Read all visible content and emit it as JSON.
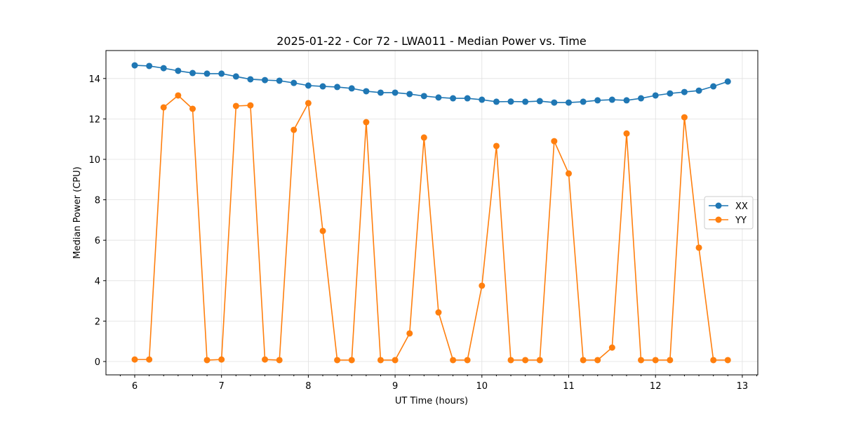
{
  "chart_data": {
    "type": "line",
    "title": "2025-01-22 - Cor 72 - LWA011 - Median Power vs. Time",
    "xlabel": "UT Time (hours)",
    "ylabel": "Median Power (CPU)",
    "xlim": [
      5.67,
      13.17
    ],
    "ylim": [
      -0.65,
      15.4
    ],
    "xticks": [
      6,
      7,
      8,
      9,
      10,
      11,
      12,
      13
    ],
    "yticks": [
      0,
      2,
      4,
      6,
      8,
      10,
      12,
      14
    ],
    "grid": true,
    "legend_position": "center-right",
    "x": [
      6.0,
      6.167,
      6.333,
      6.5,
      6.667,
      6.833,
      7.0,
      7.167,
      7.333,
      7.5,
      7.667,
      7.833,
      8.0,
      8.167,
      8.333,
      8.5,
      8.667,
      8.833,
      9.0,
      9.167,
      9.333,
      9.5,
      9.667,
      9.833,
      10.0,
      10.167,
      10.333,
      10.5,
      10.667,
      10.833,
      11.0,
      11.167,
      11.333,
      11.5,
      11.667,
      11.833,
      12.0,
      12.167,
      12.333,
      12.5,
      12.667,
      12.833
    ],
    "series": [
      {
        "name": "XX",
        "color": "#1f77b4",
        "values": [
          14.65,
          14.62,
          14.51,
          14.38,
          14.27,
          14.24,
          14.24,
          14.1,
          13.96,
          13.92,
          13.89,
          13.78,
          13.65,
          13.61,
          13.58,
          13.51,
          13.37,
          13.3,
          13.3,
          13.23,
          13.13,
          13.06,
          13.02,
          13.02,
          12.95,
          12.85,
          12.86,
          12.85,
          12.88,
          12.81,
          12.81,
          12.85,
          12.92,
          12.95,
          12.92,
          13.02,
          13.16,
          13.26,
          13.33,
          13.4,
          13.61,
          13.85
        ]
      },
      {
        "name": "YY",
        "color": "#ff7f0e",
        "values": [
          0.1,
          0.1,
          12.57,
          13.16,
          12.5,
          0.07,
          0.1,
          12.64,
          12.67,
          0.1,
          0.07,
          11.46,
          12.78,
          6.46,
          0.07,
          0.07,
          11.84,
          0.07,
          0.07,
          1.39,
          11.08,
          2.43,
          0.07,
          0.07,
          3.75,
          10.66,
          0.07,
          0.07,
          0.07,
          10.9,
          9.3,
          0.07,
          0.07,
          0.69,
          11.28,
          0.07,
          0.07,
          0.07,
          12.08,
          5.63,
          0.07,
          0.07
        ]
      }
    ]
  }
}
